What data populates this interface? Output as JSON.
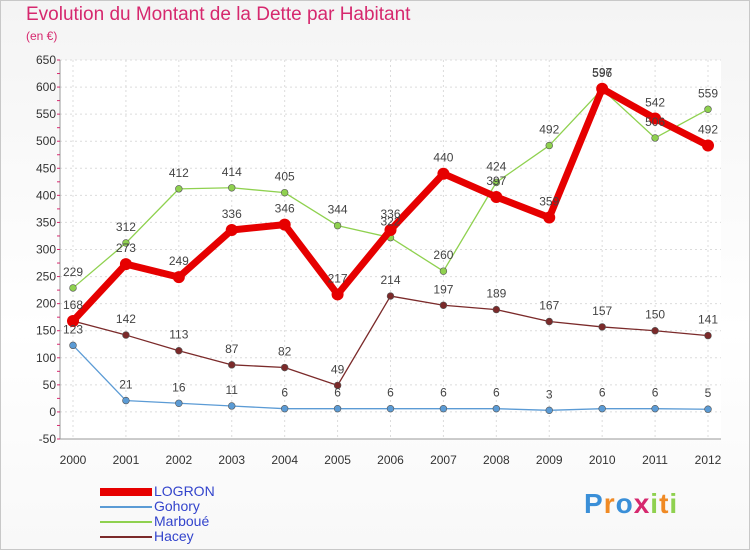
{
  "title": "Evolution du Montant de la Dette par Habitant",
  "subtitle": "(en €)",
  "chart_data": {
    "type": "line",
    "title": "Evolution du Montant de la Dette par Habitant",
    "ylabel": "(en €)",
    "xlabel": "",
    "x": [
      "2000",
      "2001",
      "2002",
      "2003",
      "2004",
      "2005",
      "2006",
      "2007",
      "2008",
      "2009",
      "2010",
      "2011",
      "2012"
    ],
    "ylim": [
      -50,
      650
    ],
    "yticks": [
      -50,
      0,
      50,
      100,
      150,
      200,
      250,
      300,
      350,
      400,
      450,
      500,
      550,
      600,
      650
    ],
    "grid": true,
    "legend_position": "bottom-left",
    "series": [
      {
        "name": "LOGRON",
        "color": "#e60000",
        "values": [
          168,
          273,
          249,
          336,
          346,
          217,
          336,
          440,
          397,
          359,
          597,
          542,
          492
        ],
        "labels": [
          "168",
          "273",
          "249",
          "336",
          "346",
          "217",
          "336",
          "440",
          "397",
          "359",
          "597",
          "542",
          "492"
        ]
      },
      {
        "name": "Gohory",
        "color": "#5b9bd5",
        "values": [
          123,
          21,
          16,
          11,
          6,
          6,
          6,
          6,
          6,
          3,
          6,
          6,
          5
        ],
        "labels": [
          "123",
          "21",
          "16",
          "11",
          "6",
          "6",
          "6",
          "6",
          "6",
          "3",
          "6",
          "6",
          "5"
        ]
      },
      {
        "name": "Marboué",
        "color": "#8fd14f",
        "values": [
          229,
          312,
          412,
          414,
          405,
          344,
          322,
          260,
          424,
          492,
          596,
          506,
          559
        ],
        "labels": [
          "229",
          "312",
          "412",
          "414",
          "405",
          "344",
          "322",
          "260",
          "424",
          "492",
          "596",
          "506",
          "559"
        ]
      },
      {
        "name": "Hacey",
        "color": "#7b2a2a",
        "values": [
          168,
          142,
          113,
          87,
          82,
          49,
          214,
          197,
          189,
          167,
          157,
          150,
          141
        ],
        "labels": [
          "",
          "142",
          "113",
          "87",
          "82",
          "49",
          "214",
          "197",
          "189",
          "167",
          "157",
          "150",
          "141"
        ]
      }
    ]
  },
  "legend": [
    "LOGRON",
    "Gohory",
    "Marboué",
    "Hacey"
  ],
  "logo": {
    "text": "Proxiti",
    "letters": [
      "P",
      "r",
      "o",
      "x",
      "i",
      "t",
      "i"
    ],
    "colors": [
      "#3a8fd8",
      "#f08a24",
      "#3a8fd8",
      "#d6286e",
      "#8fd14f",
      "#f08a24",
      "#8fd14f"
    ]
  }
}
